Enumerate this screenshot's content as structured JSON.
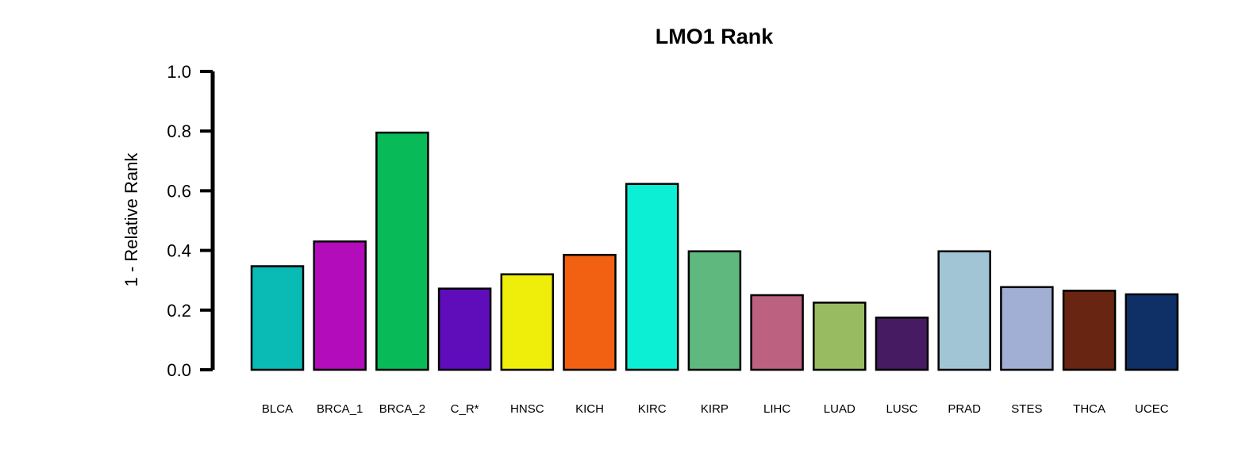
{
  "chart_data": {
    "type": "bar",
    "title": "LMO1 Rank",
    "xlabel": "",
    "ylabel": "1 - Relative Rank",
    "ylim": [
      0,
      1.0
    ],
    "yticks": [
      "0.0",
      "0.2",
      "0.4",
      "0.6",
      "0.8",
      "1.0"
    ],
    "categories": [
      "BLCA",
      "BRCA_1",
      "BRCA_2",
      "C_R*",
      "HNSC",
      "KICH",
      "KIRC",
      "KIRP",
      "LIHC",
      "LUAD",
      "LUSC",
      "PRAD",
      "STES",
      "THCA",
      "UCEC"
    ],
    "values": [
      0.347,
      0.43,
      0.795,
      0.272,
      0.32,
      0.385,
      0.623,
      0.397,
      0.25,
      0.225,
      0.175,
      0.397,
      0.277,
      0.265,
      0.253
    ],
    "colors": [
      "#0ABBB5",
      "#B20CBB",
      "#08BA58",
      "#5F0CBB",
      "#EEEE0A",
      "#F26111",
      "#0CEFD4",
      "#5FB97E",
      "#BC6180",
      "#98BB61",
      "#471B62",
      "#A1C5D5",
      "#A1AFD4",
      "#682512",
      "#0F2F67"
    ],
    "grid": false,
    "legend": "none"
  }
}
